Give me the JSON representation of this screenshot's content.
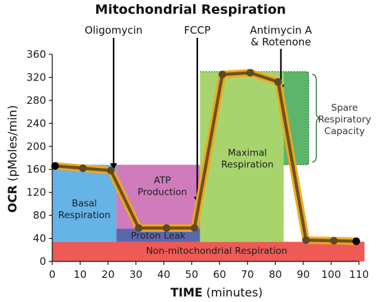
{
  "chart_data": {
    "type": "line",
    "title": "Mitochondrial Respiration",
    "ylabel_bold": "OCR",
    "ylabel_rest": " (pMoles/min)",
    "xlabel_bold": "TIME",
    "xlabel_rest": " (minutes)",
    "xlim": [
      0,
      110
    ],
    "ylim": [
      0,
      360
    ],
    "x_ticks": [
      0,
      10,
      20,
      30,
      40,
      50,
      60,
      70,
      80,
      90,
      100,
      110
    ],
    "y_ticks": [
      0,
      40,
      80,
      120,
      160,
      200,
      240,
      280,
      320,
      360
    ],
    "series": [
      {
        "x": [
          1,
          11,
          21,
          31,
          41,
          51,
          61,
          71,
          81,
          91,
          101,
          111
        ],
        "y": [
          166,
          162,
          158,
          58,
          58,
          58,
          325,
          328,
          312,
          37,
          36,
          35
        ]
      }
    ],
    "injections": [
      {
        "label": "Oligomycin",
        "x": 22
      },
      {
        "label": "FCCP",
        "x": 52
      },
      {
        "label": "Antimycin A",
        "label2": "& Rotenone",
        "x": 82
      }
    ],
    "regions": [
      {
        "name": "non-mito",
        "label": "Non-mitochondrial Respiration",
        "x0": 0,
        "x1": 113,
        "y0": 0,
        "y1": 34,
        "color": "#ee5a55"
      },
      {
        "name": "basal",
        "label": "Basal",
        "label2": "Respiration",
        "x0": 0,
        "x1": 23,
        "y0": 34,
        "y1": 168,
        "color": "#66b3e6"
      },
      {
        "name": "atp",
        "label": "ATP",
        "label2": "Production",
        "x0": 23,
        "x1": 53,
        "y0": 57,
        "y1": 168,
        "color": "#d07bbb"
      },
      {
        "name": "proton-leak",
        "label": "Proton Leak",
        "x0": 23,
        "x1": 53,
        "y0": 34,
        "y1": 57,
        "color": "#5b67ad"
      },
      {
        "name": "maximal",
        "label": "Maximal",
        "label2": "Respiration",
        "x0": 53,
        "x1": 83,
        "y0": 34,
        "y1": 330,
        "color": "#a8d46e"
      },
      {
        "name": "spare",
        "label": "Spare",
        "label2": "Respiratory",
        "label3": "Capacity",
        "x0": 83,
        "x1": 92,
        "y0": 168,
        "y1": 330,
        "color": "#5cb56b"
      }
    ],
    "colors": {
      "line": "#6b5320",
      "glow": "#f2a71b",
      "marker": "#5c4a26",
      "end_marker": "#000000"
    }
  }
}
